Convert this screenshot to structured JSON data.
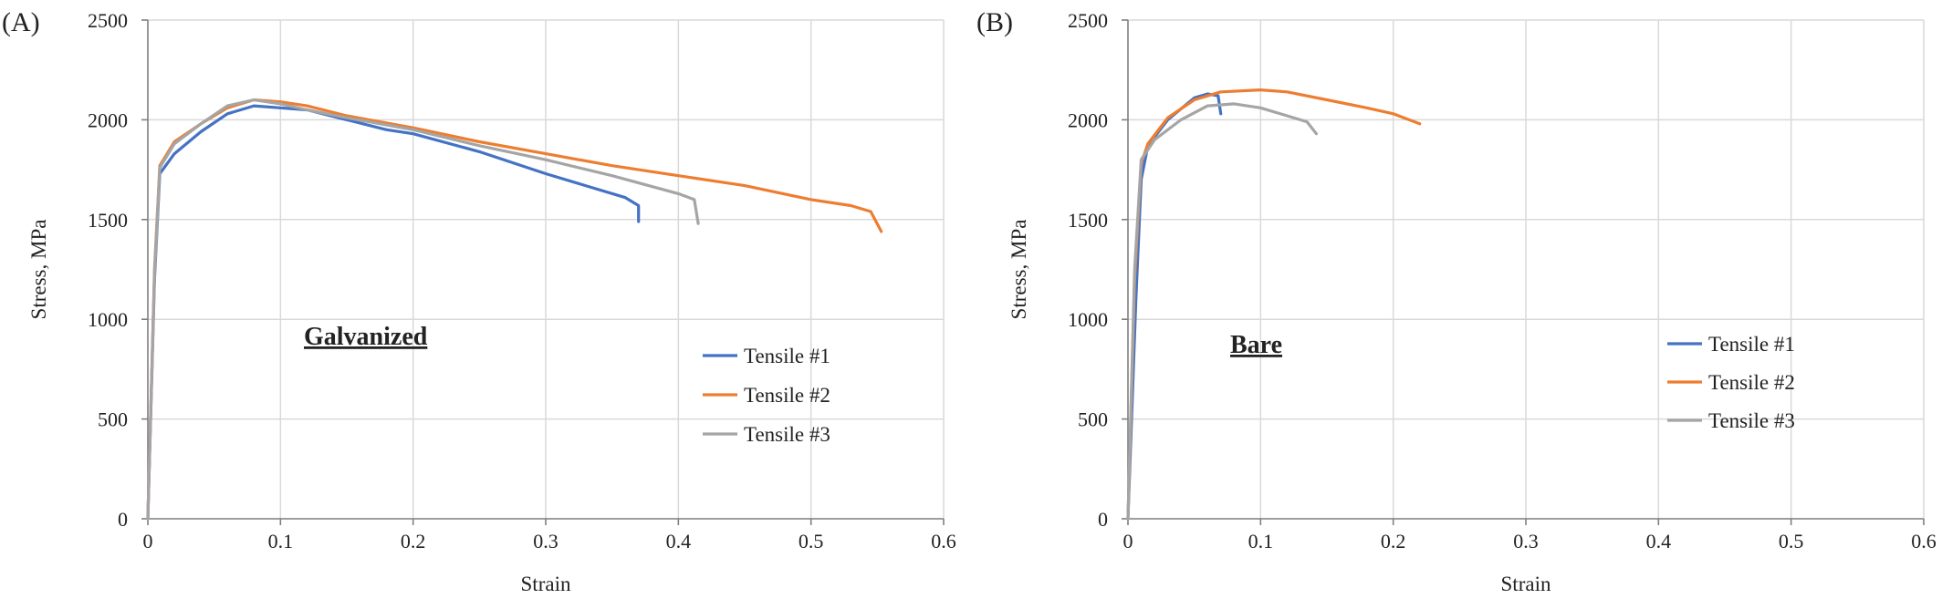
{
  "chart_data": [
    {
      "panel_label": "(A)",
      "type": "line",
      "annotation": "Galvanized",
      "xlabel": "Strain",
      "ylabel": "Stress, MPa",
      "xlim": [
        0,
        0.6
      ],
      "ylim": [
        0,
        2500
      ],
      "x_ticks": [
        "0",
        "0.1",
        "0.2",
        "0.3",
        "0.4",
        "0.5",
        "0.6"
      ],
      "y_ticks": [
        "0",
        "500",
        "1000",
        "1500",
        "2000",
        "2500"
      ],
      "grid": "vertical",
      "legend_position": "right",
      "series": [
        {
          "name": "Tensile #1",
          "color": "#4472C4",
          "points": [
            [
              0,
              0
            ],
            [
              0.005,
              1200
            ],
            [
              0.009,
              1730
            ],
            [
              0.02,
              1830
            ],
            [
              0.04,
              1940
            ],
            [
              0.06,
              2030
            ],
            [
              0.08,
              2070
            ],
            [
              0.1,
              2060
            ],
            [
              0.12,
              2050
            ],
            [
              0.15,
              2000
            ],
            [
              0.18,
              1950
            ],
            [
              0.2,
              1930
            ],
            [
              0.25,
              1840
            ],
            [
              0.3,
              1730
            ],
            [
              0.33,
              1670
            ],
            [
              0.36,
              1610
            ],
            [
              0.37,
              1570
            ],
            [
              0.37,
              1490
            ]
          ]
        },
        {
          "name": "Tensile #2",
          "color": "#ED7D31",
          "points": [
            [
              0,
              0
            ],
            [
              0.005,
              1250
            ],
            [
              0.009,
              1770
            ],
            [
              0.02,
              1890
            ],
            [
              0.04,
              1980
            ],
            [
              0.06,
              2060
            ],
            [
              0.08,
              2100
            ],
            [
              0.1,
              2090
            ],
            [
              0.12,
              2070
            ],
            [
              0.15,
              2020
            ],
            [
              0.2,
              1960
            ],
            [
              0.25,
              1890
            ],
            [
              0.3,
              1830
            ],
            [
              0.35,
              1770
            ],
            [
              0.4,
              1720
            ],
            [
              0.45,
              1670
            ],
            [
              0.5,
              1600
            ],
            [
              0.53,
              1570
            ],
            [
              0.545,
              1540
            ],
            [
              0.553,
              1440
            ]
          ]
        },
        {
          "name": "Tensile #3",
          "color": "#A5A5A5",
          "points": [
            [
              0,
              0
            ],
            [
              0.005,
              1230
            ],
            [
              0.009,
              1760
            ],
            [
              0.02,
              1880
            ],
            [
              0.04,
              1980
            ],
            [
              0.06,
              2070
            ],
            [
              0.08,
              2100
            ],
            [
              0.1,
              2080
            ],
            [
              0.12,
              2050
            ],
            [
              0.15,
              2010
            ],
            [
              0.2,
              1950
            ],
            [
              0.25,
              1870
            ],
            [
              0.3,
              1800
            ],
            [
              0.35,
              1720
            ],
            [
              0.4,
              1630
            ],
            [
              0.412,
              1600
            ],
            [
              0.415,
              1480
            ]
          ]
        }
      ]
    },
    {
      "panel_label": "(B)",
      "type": "line",
      "annotation": "Bare",
      "xlabel": "Strain",
      "ylabel": "Stress, MPa",
      "xlim": [
        0,
        0.6
      ],
      "ylim": [
        0,
        2500
      ],
      "x_ticks": [
        "0",
        "0.1",
        "0.2",
        "0.3",
        "0.4",
        "0.5",
        "0.6"
      ],
      "y_ticks": [
        "0",
        "500",
        "1000",
        "1500",
        "2000",
        "2500"
      ],
      "grid": "vertical",
      "legend_position": "right",
      "series": [
        {
          "name": "Tensile #1",
          "color": "#4472C4",
          "points": [
            [
              0,
              0
            ],
            [
              0.006,
              1100
            ],
            [
              0.01,
              1700
            ],
            [
              0.015,
              1870
            ],
            [
              0.03,
              2000
            ],
            [
              0.05,
              2110
            ],
            [
              0.06,
              2130
            ],
            [
              0.068,
              2120
            ],
            [
              0.07,
              2030
            ]
          ]
        },
        {
          "name": "Tensile #2",
          "color": "#ED7D31",
          "points": [
            [
              0,
              0
            ],
            [
              0.005,
              1200
            ],
            [
              0.01,
              1780
            ],
            [
              0.015,
              1880
            ],
            [
              0.03,
              2010
            ],
            [
              0.05,
              2100
            ],
            [
              0.07,
              2140
            ],
            [
              0.1,
              2150
            ],
            [
              0.12,
              2140
            ],
            [
              0.15,
              2100
            ],
            [
              0.18,
              2060
            ],
            [
              0.2,
              2030
            ],
            [
              0.22,
              1980
            ]
          ]
        },
        {
          "name": "Tensile #3",
          "color": "#A5A5A5",
          "points": [
            [
              0,
              0
            ],
            [
              0.005,
              1250
            ],
            [
              0.01,
              1800
            ],
            [
              0.02,
              1900
            ],
            [
              0.04,
              2000
            ],
            [
              0.06,
              2070
            ],
            [
              0.08,
              2080
            ],
            [
              0.1,
              2060
            ],
            [
              0.12,
              2020
            ],
            [
              0.135,
              1990
            ],
            [
              0.142,
              1930
            ]
          ]
        }
      ]
    }
  ]
}
